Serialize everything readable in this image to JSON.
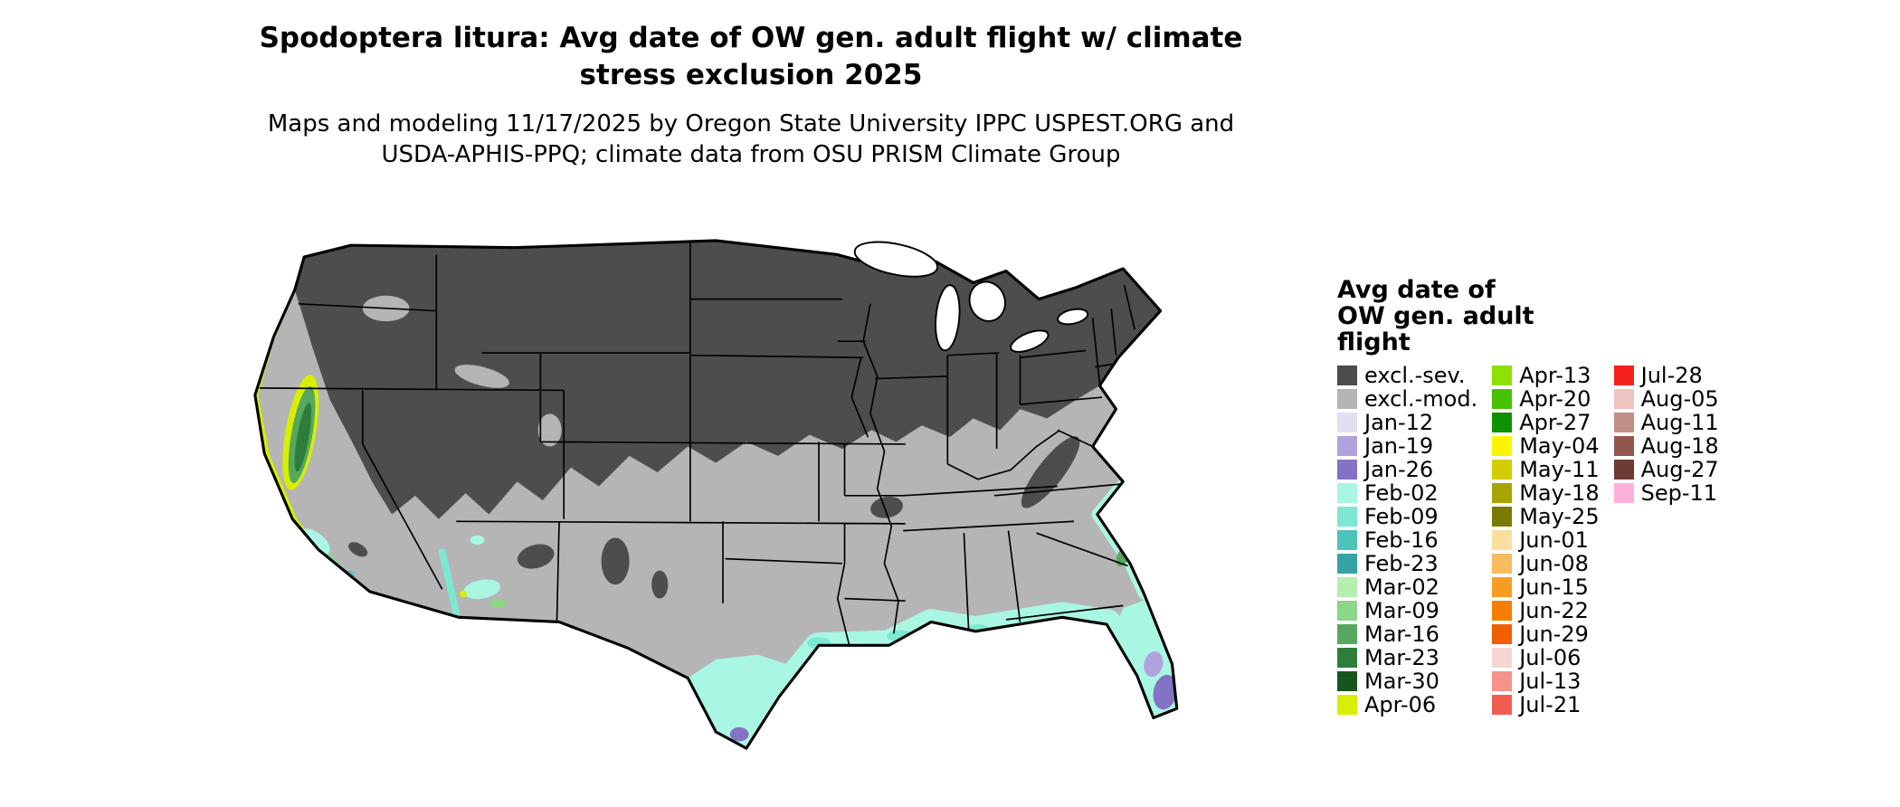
{
  "title": {
    "line1": "Spodoptera litura: Avg date of OW gen. adult flight w/ climate",
    "line2": "stress exclusion 2025"
  },
  "subtitle": {
    "line1": "Maps and modeling 11/17/2025 by Oregon State University IPPC USPEST.ORG and",
    "line2": "USDA-APHIS-PPQ; climate data from OSU PRISM Climate Group"
  },
  "legend": {
    "title_lines": [
      "Avg date of",
      "OW gen. adult",
      "flight"
    ],
    "columns": [
      [
        {
          "label": "excl.-sev.",
          "color": "#4d4d4d"
        },
        {
          "label": "excl.-mod.",
          "color": "#b5b5b5"
        },
        {
          "label": "Jan-12",
          "color": "#e4def5"
        },
        {
          "label": "Jan-19",
          "color": "#b0a3dd"
        },
        {
          "label": "Jan-26",
          "color": "#8472c4"
        },
        {
          "label": "Feb-02",
          "color": "#a9f7e3"
        },
        {
          "label": "Feb-09",
          "color": "#7ce8d2"
        },
        {
          "label": "Feb-16",
          "color": "#4cc4bc"
        },
        {
          "label": "Feb-23",
          "color": "#35a3a3"
        },
        {
          "label": "Mar-02",
          "color": "#b4efae"
        },
        {
          "label": "Mar-09",
          "color": "#8bd687"
        },
        {
          "label": "Mar-16",
          "color": "#57a85e"
        },
        {
          "label": "Mar-23",
          "color": "#2e7d3a"
        },
        {
          "label": "Mar-30",
          "color": "#17541f"
        },
        {
          "label": "Apr-06",
          "color": "#d7ef00"
        }
      ],
      [
        {
          "label": "Apr-13",
          "color": "#8ee000"
        },
        {
          "label": "Apr-20",
          "color": "#47c200"
        },
        {
          "label": "Apr-27",
          "color": "#0f9200"
        },
        {
          "label": "May-04",
          "color": "#fbf600"
        },
        {
          "label": "May-11",
          "color": "#d3cc00"
        },
        {
          "label": "May-18",
          "color": "#a8a400"
        },
        {
          "label": "May-25",
          "color": "#7a7a00"
        },
        {
          "label": "Jun-01",
          "color": "#fbdfa0"
        },
        {
          "label": "Jun-08",
          "color": "#f7bc5d"
        },
        {
          "label": "Jun-15",
          "color": "#f79c23"
        },
        {
          "label": "Jun-22",
          "color": "#f57d00"
        },
        {
          "label": "Jun-29",
          "color": "#ef5f00"
        },
        {
          "label": "Jul-06",
          "color": "#f5d6d2"
        },
        {
          "label": "Jul-13",
          "color": "#f59289"
        },
        {
          "label": "Jul-21",
          "color": "#f25c50"
        }
      ],
      [
        {
          "label": "Jul-28",
          "color": "#f5211e"
        },
        {
          "label": "Aug-05",
          "color": "#eec4c0"
        },
        {
          "label": "Aug-11",
          "color": "#c18e88"
        },
        {
          "label": "Aug-18",
          "color": "#92564e"
        },
        {
          "label": "Aug-27",
          "color": "#6e3a34"
        },
        {
          "label": "Sep-11",
          "color": "#ffb0d9"
        }
      ]
    ]
  },
  "map": {
    "colors": {
      "excluded_severe": "#4d4d4d",
      "excluded_moderate": "#b5b5b5",
      "feb_band": "#a9f7e3",
      "feb_deep": "#7ce8d2",
      "teal": "#4cc4bc",
      "purple": "#8472c4",
      "lavender": "#b0a3dd",
      "valley_yellow": "#d7ef00",
      "valley_green": "#57a85e",
      "valley_dark": "#2e7d3a",
      "coast_green": "#8bd687",
      "outline": "#000000",
      "water": "#ffffff"
    }
  }
}
